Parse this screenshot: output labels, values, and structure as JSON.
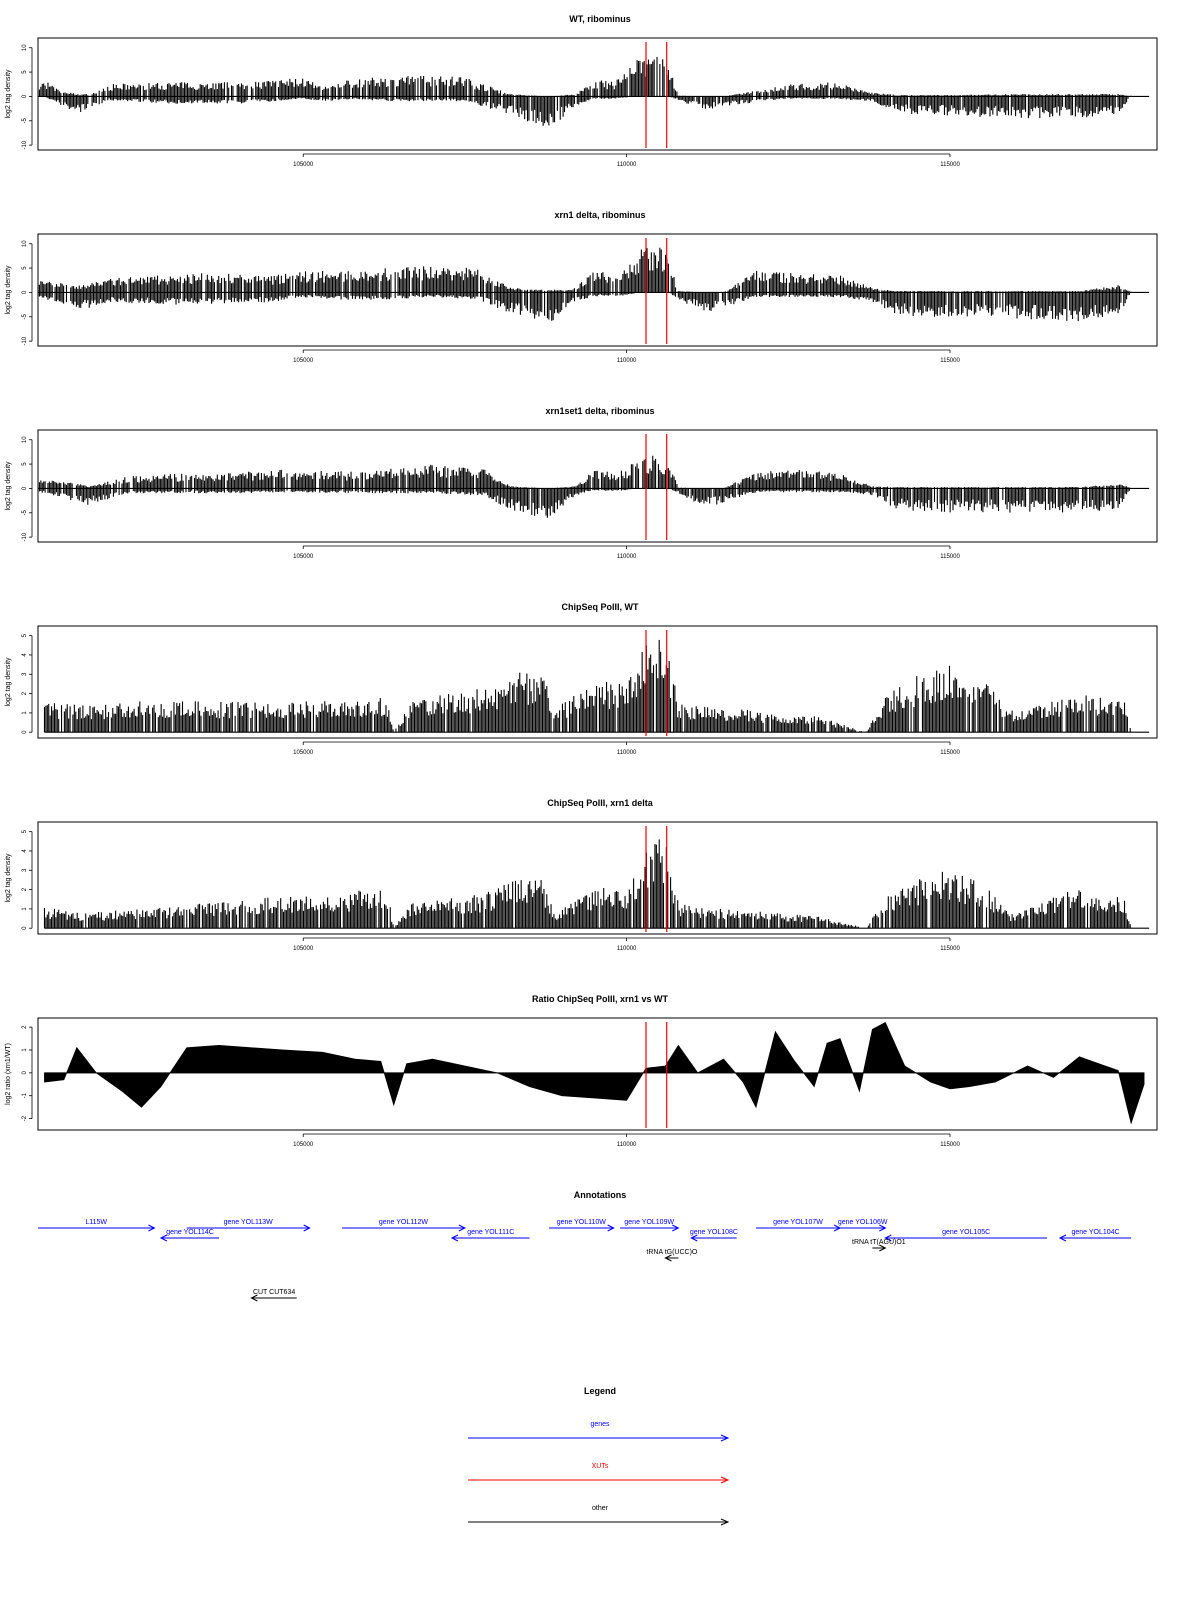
{
  "chart_data": [
    {
      "type": "bar",
      "title": "WT, ribominus",
      "ylabel": "log2 tag density",
      "xlim": [
        100900,
        118200
      ],
      "ylim": [
        -11,
        12
      ],
      "yticks": [
        -10,
        -5,
        0,
        5,
        10
      ],
      "xticks": [
        105000,
        110000,
        115000
      ],
      "xtick_labels": [
        "105000",
        "110000",
        "115000"
      ],
      "ytick_labels": [
        "-10",
        "-5",
        "0",
        "5",
        "10"
      ],
      "markers": [
        110300,
        110620
      ],
      "profile": [
        [
          100900,
          2,
          0
        ],
        [
          101000,
          3.5,
          0
        ],
        [
          101200,
          1.5,
          -1.5
        ],
        [
          101500,
          0.5,
          -3.5
        ],
        [
          101700,
          0.5,
          -2.5
        ],
        [
          102000,
          2.5,
          -0.8
        ],
        [
          103000,
          3,
          -1.5
        ],
        [
          104000,
          3,
          -1.5
        ],
        [
          104600,
          3.5,
          -1
        ],
        [
          105000,
          4,
          -0.5
        ],
        [
          105300,
          1.8,
          -1
        ],
        [
          105800,
          4,
          -0.5
        ],
        [
          106300,
          4,
          -1
        ],
        [
          107000,
          4.5,
          -1
        ],
        [
          107500,
          4,
          -1
        ],
        [
          108200,
          0.5,
          -4
        ],
        [
          108800,
          0,
          -7
        ],
        [
          109200,
          0.5,
          -2
        ],
        [
          109500,
          3.5,
          -0.5
        ],
        [
          109800,
          3,
          -0.5
        ],
        [
          110200,
          8,
          0
        ],
        [
          110500,
          9,
          0
        ],
        [
          110650,
          7,
          0
        ],
        [
          110800,
          0.2,
          -0.8
        ],
        [
          111200,
          0,
          -3
        ],
        [
          111500,
          0,
          -2
        ],
        [
          112000,
          1.2,
          -1.2
        ],
        [
          112500,
          2.5,
          -0.5
        ],
        [
          113200,
          3,
          -0.5
        ],
        [
          113800,
          0.8,
          -1
        ],
        [
          114200,
          0.3,
          -3.5
        ],
        [
          115000,
          0.3,
          -4
        ],
        [
          116000,
          0.5,
          -4.5
        ],
        [
          117000,
          0.5,
          -4.5
        ],
        [
          117600,
          0.5,
          -4
        ],
        [
          117800,
          0.2,
          0
        ]
      ]
    },
    {
      "type": "bar",
      "title": "xrn1 delta, ribominus",
      "ylabel": "log2 tag density",
      "xlim": [
        100900,
        118200
      ],
      "ylim": [
        -11,
        12
      ],
      "yticks": [
        -10,
        -5,
        0,
        5,
        10
      ],
      "xticks": [
        105000,
        110000,
        115000
      ],
      "xtick_labels": [
        "105000",
        "110000",
        "115000"
      ],
      "ytick_labels": [
        "-10",
        "-5",
        "0",
        "5",
        "10"
      ],
      "markers": [
        110300,
        110620
      ],
      "profile": [
        [
          100900,
          2.5,
          -1
        ],
        [
          101200,
          2,
          -2.5
        ],
        [
          101600,
          1.5,
          -3.5
        ],
        [
          102000,
          3,
          -2
        ],
        [
          102800,
          3.5,
          -2.5
        ],
        [
          103500,
          4,
          -2.5
        ],
        [
          104500,
          3.5,
          -2
        ],
        [
          105000,
          4.5,
          -1
        ],
        [
          105600,
          4.5,
          -1.5
        ],
        [
          106200,
          5,
          -1.5
        ],
        [
          107000,
          5.5,
          -1
        ],
        [
          107700,
          5,
          -1.5
        ],
        [
          108200,
          1,
          -4.5
        ],
        [
          108800,
          0.5,
          -6.5
        ],
        [
          109200,
          1,
          -2
        ],
        [
          109500,
          4.5,
          -0.8
        ],
        [
          109900,
          3.5,
          -0.8
        ],
        [
          110200,
          9,
          0
        ],
        [
          110500,
          9.5,
          0
        ],
        [
          110650,
          7,
          0
        ],
        [
          110800,
          0.3,
          -1.5
        ],
        [
          111200,
          0,
          -4
        ],
        [
          111500,
          0,
          -3.5
        ],
        [
          112000,
          4.5,
          -1
        ],
        [
          112700,
          4,
          -1
        ],
        [
          113300,
          3.5,
          -1
        ],
        [
          113800,
          1,
          -2
        ],
        [
          114200,
          0.3,
          -5
        ],
        [
          115000,
          0.3,
          -5
        ],
        [
          116000,
          0.3,
          -5.5
        ],
        [
          117000,
          0.3,
          -6
        ],
        [
          117600,
          1.5,
          -5
        ],
        [
          117800,
          0.2,
          0
        ]
      ]
    },
    {
      "type": "bar",
      "title": "xrn1set1 delta, ribominus",
      "ylabel": "log2 tag density",
      "xlim": [
        100900,
        118200
      ],
      "ylim": [
        -11,
        12
      ],
      "yticks": [
        -10,
        -5,
        0,
        5,
        10
      ],
      "xticks": [
        105000,
        110000,
        115000
      ],
      "xtick_labels": [
        "105000",
        "110000",
        "115000"
      ],
      "ytick_labels": [
        "-10",
        "-5",
        "0",
        "5",
        "10"
      ],
      "markers": [
        110300,
        110620
      ],
      "profile": [
        [
          100900,
          2,
          -0.8
        ],
        [
          101300,
          1.5,
          -2
        ],
        [
          101700,
          0.5,
          -3.5
        ],
        [
          102300,
          2.5,
          -1
        ],
        [
          103000,
          3,
          -1
        ],
        [
          104000,
          3.5,
          -1
        ],
        [
          105000,
          4,
          -0.8
        ],
        [
          105800,
          3.5,
          -1
        ],
        [
          106300,
          4,
          -1
        ],
        [
          107000,
          5,
          -1
        ],
        [
          107800,
          4,
          -1.5
        ],
        [
          108200,
          0.5,
          -4.5
        ],
        [
          108800,
          0,
          -6.5
        ],
        [
          109200,
          0.5,
          -1.5
        ],
        [
          109500,
          4,
          -0.5
        ],
        [
          109900,
          3.5,
          -0.5
        ],
        [
          110200,
          6.5,
          0
        ],
        [
          110500,
          7,
          0
        ],
        [
          110650,
          5.5,
          0
        ],
        [
          110800,
          0.2,
          -1
        ],
        [
          111200,
          0,
          -4
        ],
        [
          111500,
          0,
          -3
        ],
        [
          112000,
          3.5,
          -0.8
        ],
        [
          112700,
          4,
          -0.8
        ],
        [
          113300,
          3,
          -0.8
        ],
        [
          113800,
          0.5,
          -1.5
        ],
        [
          114200,
          0.3,
          -4.5
        ],
        [
          115000,
          0.3,
          -5
        ],
        [
          116000,
          0.3,
          -5
        ],
        [
          117000,
          0.3,
          -5
        ],
        [
          117600,
          1,
          -4.5
        ],
        [
          117800,
          0.2,
          0
        ]
      ]
    },
    {
      "type": "bar",
      "title": "ChipSeq PolII, WT",
      "ylabel": "log2 tag density",
      "xlim": [
        100900,
        118200
      ],
      "ylim": [
        -0.3,
        5.5
      ],
      "yticks": [
        0,
        1,
        2,
        3,
        4,
        5
      ],
      "xticks": [
        105000,
        110000,
        115000
      ],
      "xtick_labels": [
        "105000",
        "110000",
        "115000"
      ],
      "ytick_labels": [
        "0",
        "1",
        "2",
        "3",
        "4",
        "5"
      ],
      "markers": [
        110300,
        110620
      ],
      "profile": [
        [
          101000,
          1.6,
          0
        ],
        [
          101600,
          1.4,
          0
        ],
        [
          102500,
          1.6,
          0
        ],
        [
          103500,
          1.6,
          0
        ],
        [
          104500,
          1.6,
          0
        ],
        [
          105500,
          1.7,
          0
        ],
        [
          106300,
          1.8,
          0
        ],
        [
          106400,
          0,
          0
        ],
        [
          106700,
          1.8,
          0
        ],
        [
          107300,
          2,
          0
        ],
        [
          107800,
          2.3,
          0
        ],
        [
          108300,
          3.2,
          0
        ],
        [
          108700,
          3,
          0
        ],
        [
          108900,
          1.2,
          0
        ],
        [
          109200,
          2,
          0
        ],
        [
          109600,
          2.8,
          0
        ],
        [
          110000,
          2.4,
          0
        ],
        [
          110300,
          4.8,
          0
        ],
        [
          110500,
          5,
          0
        ],
        [
          110620,
          4.6,
          0
        ],
        [
          110800,
          1.5,
          0
        ],
        [
          111500,
          1.3,
          0
        ],
        [
          112300,
          1,
          0
        ],
        [
          113000,
          0.8,
          0
        ],
        [
          113700,
          0,
          0
        ],
        [
          114000,
          2,
          0
        ],
        [
          114500,
          3,
          0
        ],
        [
          115000,
          3.6,
          0
        ],
        [
          115500,
          2.8,
          0
        ],
        [
          115900,
          1.2,
          0
        ],
        [
          116200,
          1.2,
          0
        ],
        [
          117000,
          2,
          0
        ],
        [
          117700,
          1.6,
          0
        ],
        [
          117800,
          0,
          0
        ]
      ]
    },
    {
      "type": "bar",
      "title": "ChipSeq PolII, xrn1 delta",
      "ylabel": "log2 tag density",
      "xlim": [
        100900,
        118200
      ],
      "ylim": [
        -0.3,
        5.5
      ],
      "yticks": [
        0,
        1,
        2,
        3,
        4,
        5
      ],
      "xticks": [
        105000,
        110000,
        115000
      ],
      "xtick_labels": [
        "105000",
        "110000",
        "115000"
      ],
      "ytick_labels": [
        "0",
        "1",
        "2",
        "3",
        "4",
        "5"
      ],
      "markers": [
        110300,
        110620
      ],
      "profile": [
        [
          101000,
          1.1,
          0
        ],
        [
          101600,
          0.8,
          0
        ],
        [
          102500,
          1,
          0
        ],
        [
          103500,
          1.3,
          0
        ],
        [
          104500,
          1.6,
          0
        ],
        [
          105500,
          1.8,
          0
        ],
        [
          106300,
          2.2,
          0
        ],
        [
          106400,
          0,
          0
        ],
        [
          106700,
          1.4,
          0
        ],
        [
          107300,
          1.6,
          0
        ],
        [
          107800,
          1.8,
          0
        ],
        [
          108300,
          2.7,
          0
        ],
        [
          108700,
          2.5,
          0
        ],
        [
          108900,
          0.8,
          0
        ],
        [
          109200,
          1.4,
          0
        ],
        [
          109600,
          2.2,
          0
        ],
        [
          110000,
          1.8,
          0
        ],
        [
          110300,
          4.6,
          0
        ],
        [
          110500,
          4.7,
          0
        ],
        [
          110620,
          4.5,
          0
        ],
        [
          110800,
          1.3,
          0
        ],
        [
          111500,
          1,
          0
        ],
        [
          112300,
          0.8,
          0
        ],
        [
          113000,
          0.6,
          0
        ],
        [
          113700,
          0,
          0
        ],
        [
          114000,
          1.7,
          0
        ],
        [
          114500,
          2.5,
          0
        ],
        [
          115000,
          3.1,
          0
        ],
        [
          115500,
          2.4,
          0
        ],
        [
          115900,
          0.8,
          0
        ],
        [
          116200,
          1,
          0
        ],
        [
          117000,
          2.2,
          0
        ],
        [
          117700,
          1.5,
          0
        ],
        [
          117800,
          0,
          0
        ]
      ]
    },
    {
      "type": "area",
      "title": "Ratio ChipSeq PolII, xrn1 vs WT",
      "ylabel": "log2 ratio (xrn1/WT)",
      "xlim": [
        100900,
        118200
      ],
      "ylim": [
        -2.5,
        2.4
      ],
      "yticks": [
        -2,
        -1,
        0,
        1,
        2
      ],
      "xticks": [
        105000,
        110000,
        115000
      ],
      "xtick_labels": [
        "105000",
        "110000",
        "115000"
      ],
      "ytick_labels": [
        "-2",
        "-1",
        "0",
        "1",
        "2"
      ],
      "markers": [
        110300,
        110620
      ],
      "x": [
        101000,
        101300,
        101500,
        101800,
        102200,
        102500,
        102800,
        103200,
        103700,
        104200,
        104700,
        105300,
        105800,
        106200,
        106400,
        106600,
        107000,
        107500,
        108000,
        108500,
        109000,
        109500,
        110000,
        110300,
        110600,
        110800,
        111100,
        111500,
        111800,
        112000,
        112300,
        112600,
        112900,
        113100,
        113300,
        113600,
        113800,
        114000,
        114300,
        114700,
        115000,
        115300,
        115700,
        116200,
        116600,
        117000,
        117300,
        117600,
        117800,
        118000
      ],
      "y": [
        -0.4,
        -0.3,
        1.1,
        0,
        -0.8,
        -1.5,
        -0.6,
        1.1,
        1.2,
        1.1,
        1.0,
        0.9,
        0.6,
        0.5,
        -1.4,
        0.4,
        0.6,
        0.3,
        0,
        -0.6,
        -1.0,
        -1.1,
        -1.2,
        0.2,
        0.3,
        1.2,
        0,
        0.6,
        -0.4,
        -1.5,
        1.8,
        0.5,
        -0.6,
        1.3,
        1.5,
        -0.8,
        1.9,
        2.2,
        0.3,
        -0.4,
        -0.7,
        -0.6,
        -0.4,
        0.3,
        -0.2,
        0.7,
        0.4,
        0.1,
        -2.2,
        -0.5
      ]
    }
  ],
  "annotations": {
    "title": "Annotations",
    "xlim": [
      100900,
      118200
    ],
    "items": [
      {
        "label": "L115W",
        "start": 100900,
        "end": 102700,
        "row": 0,
        "dir": "right",
        "color": "#0000ff"
      },
      {
        "label": "gene YOL114C",
        "start": 102800,
        "end": 103700,
        "row": 1,
        "dir": "left",
        "color": "#0000ff"
      },
      {
        "label": "gene YOL113W",
        "start": 103200,
        "end": 105100,
        "row": 0,
        "dir": "right",
        "color": "#0000ff"
      },
      {
        "label": "gene YOL112W",
        "start": 105600,
        "end": 107500,
        "row": 0,
        "dir": "right",
        "color": "#0000ff"
      },
      {
        "label": "gene YOL111C",
        "start": 107300,
        "end": 108500,
        "row": 1,
        "dir": "left",
        "color": "#0000ff"
      },
      {
        "label": "gene YOL110W",
        "start": 108800,
        "end": 109800,
        "row": 0,
        "dir": "right",
        "color": "#0000ff"
      },
      {
        "label": "gene YOL109W",
        "start": 109900,
        "end": 110800,
        "row": 0,
        "dir": "right",
        "color": "#0000ff"
      },
      {
        "label": "gene YOL108C",
        "start": 111000,
        "end": 111700,
        "row": 1,
        "dir": "left",
        "color": "#0000ff"
      },
      {
        "label": "gene YOL107W",
        "start": 112000,
        "end": 113300,
        "row": 0,
        "dir": "right",
        "color": "#0000ff"
      },
      {
        "label": "gene YOL106W",
        "start": 113300,
        "end": 114000,
        "row": 0,
        "dir": "right",
        "color": "#0000ff"
      },
      {
        "label": "gene YOL105C",
        "start": 114000,
        "end": 116500,
        "row": 1,
        "dir": "left",
        "color": "#0000ff"
      },
      {
        "label": "gene YOL104C",
        "start": 116700,
        "end": 117800,
        "row": 1,
        "dir": "left",
        "color": "#0000ff"
      },
      {
        "label": "tRNA tG(UCC)O",
        "start": 110600,
        "end": 110800,
        "row": 3,
        "dir": "left",
        "color": "#000000"
      },
      {
        "label": "tRNA tT(AGU)O1",
        "start": 113800,
        "end": 114000,
        "row": 2,
        "dir": "right",
        "color": "#000000"
      },
      {
        "label": "CUT CUT634",
        "start": 104200,
        "end": 104900,
        "row": 5,
        "dir": "left",
        "color": "#000000"
      }
    ]
  },
  "legend": {
    "title": "Legend",
    "items": [
      {
        "label": "genes",
        "color": "#0000ff"
      },
      {
        "label": "XUTs",
        "color": "#ff0000"
      },
      {
        "label": "other",
        "color": "#000000"
      }
    ]
  }
}
